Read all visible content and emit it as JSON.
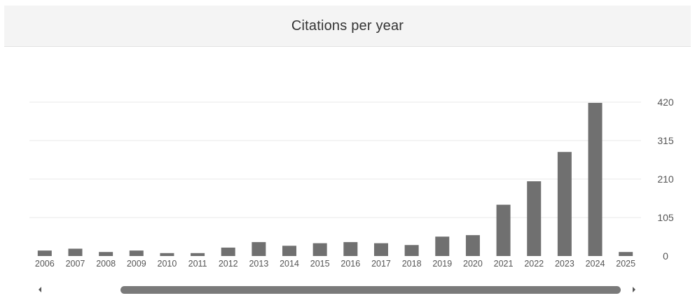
{
  "header": {
    "title": "Citations per year"
  },
  "chart_data": {
    "type": "bar",
    "title": "Citations per year",
    "categories": [
      "2006",
      "2007",
      "2008",
      "2009",
      "2010",
      "2011",
      "2012",
      "2013",
      "2014",
      "2015",
      "2016",
      "2017",
      "2018",
      "2019",
      "2020",
      "2021",
      "2022",
      "2023",
      "2024",
      "2025"
    ],
    "values": [
      15,
      20,
      11,
      15,
      8,
      8,
      23,
      38,
      28,
      35,
      38,
      35,
      30,
      53,
      57,
      140,
      204,
      284,
      418,
      11
    ],
    "ylim": [
      0,
      420
    ],
    "yticks": [
      0,
      105,
      210,
      315,
      420
    ],
    "y_axis_position": "right",
    "grid": true,
    "bar_color": "#707070",
    "grid_color": "#e8e8e8",
    "label_color": "#555555"
  },
  "scrollbar": {
    "left_arrow": "triangle-left",
    "right_arrow": "triangle-right",
    "thumb_color": "#7a7a7a"
  }
}
